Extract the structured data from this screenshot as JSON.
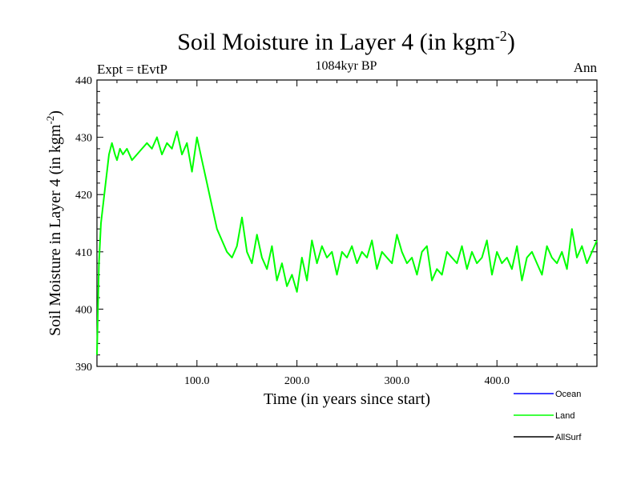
{
  "chart_data": {
    "type": "line",
    "title": "Soil Moisture in Layer 4 (in kgm",
    "title_sup": "-2",
    "title_close": ")",
    "subtitle_left": "Expt = tEvtP",
    "subtitle_center": "1084kyr BP",
    "subtitle_right": "Ann",
    "xlabel": "Time (in years since start)",
    "ylabel": "Soil Moisture in Layer 4 (in kgm",
    "ylabel_sup": "-2",
    "ylabel_close": ")",
    "xlim": [
      0,
      500
    ],
    "ylim": [
      390,
      440
    ],
    "x_ticks": [
      {
        "value": 100,
        "label": "100.0"
      },
      {
        "value": 200,
        "label": "200.0"
      },
      {
        "value": 300,
        "label": "300.0"
      },
      {
        "value": 400,
        "label": "400.0"
      }
    ],
    "y_ticks": [
      {
        "value": 390,
        "label": "390"
      },
      {
        "value": 400,
        "label": "400"
      },
      {
        "value": 410,
        "label": "410"
      },
      {
        "value": 420,
        "label": "420"
      },
      {
        "value": 430,
        "label": "430"
      },
      {
        "value": 440,
        "label": "440"
      }
    ],
    "legend": [
      {
        "name": "Ocean",
        "color": "#0000ff"
      },
      {
        "name": "Land",
        "color": "#00ff00"
      },
      {
        "name": "AllSurf",
        "color": "#000000"
      }
    ],
    "series": [
      {
        "name": "Land",
        "color": "#00ff00",
        "x": [
          0,
          2,
          4,
          6,
          8,
          10,
          12,
          15,
          18,
          20,
          23,
          26,
          30,
          35,
          40,
          45,
          50,
          55,
          60,
          65,
          70,
          75,
          80,
          85,
          90,
          95,
          100,
          105,
          110,
          115,
          120,
          125,
          130,
          135,
          140,
          145,
          150,
          155,
          160,
          165,
          170,
          175,
          180,
          185,
          190,
          195,
          200,
          205,
          210,
          215,
          220,
          225,
          230,
          235,
          240,
          245,
          250,
          255,
          260,
          265,
          270,
          275,
          280,
          285,
          290,
          295,
          300,
          305,
          310,
          315,
          320,
          325,
          330,
          335,
          340,
          345,
          350,
          355,
          360,
          365,
          370,
          375,
          380,
          385,
          390,
          395,
          400,
          405,
          410,
          415,
          420,
          425,
          430,
          435,
          440,
          445,
          450,
          455,
          460,
          465,
          470,
          475,
          480,
          485,
          490,
          495,
          500
        ],
        "values": [
          392,
          408,
          415,
          418,
          421,
          424,
          427,
          429,
          427,
          426,
          428,
          427,
          428,
          426,
          427,
          428,
          429,
          428,
          430,
          427,
          429,
          428,
          431,
          427,
          429,
          424,
          430,
          426,
          422,
          418,
          414,
          412,
          410,
          409,
          411,
          416,
          410,
          408,
          413,
          409,
          407,
          411,
          405,
          408,
          404,
          406,
          403,
          409,
          405,
          412,
          408,
          411,
          409,
          410,
          406,
          410,
          409,
          411,
          408,
          410,
          409,
          412,
          407,
          410,
          409,
          408,
          413,
          410,
          408,
          409,
          406,
          410,
          411,
          405,
          407,
          406,
          410,
          409,
          408,
          411,
          407,
          410,
          408,
          409,
          412,
          406,
          410,
          408,
          409,
          407,
          411,
          405,
          409,
          410,
          408,
          406,
          411,
          409,
          408,
          410,
          407,
          414,
          409,
          411,
          408,
          410,
          412
        ]
      },
      {
        "name": "Ocean",
        "color": "#0000ff",
        "x": [],
        "values": []
      },
      {
        "name": "AllSurf",
        "color": "#000000",
        "x": [],
        "values": []
      }
    ]
  }
}
